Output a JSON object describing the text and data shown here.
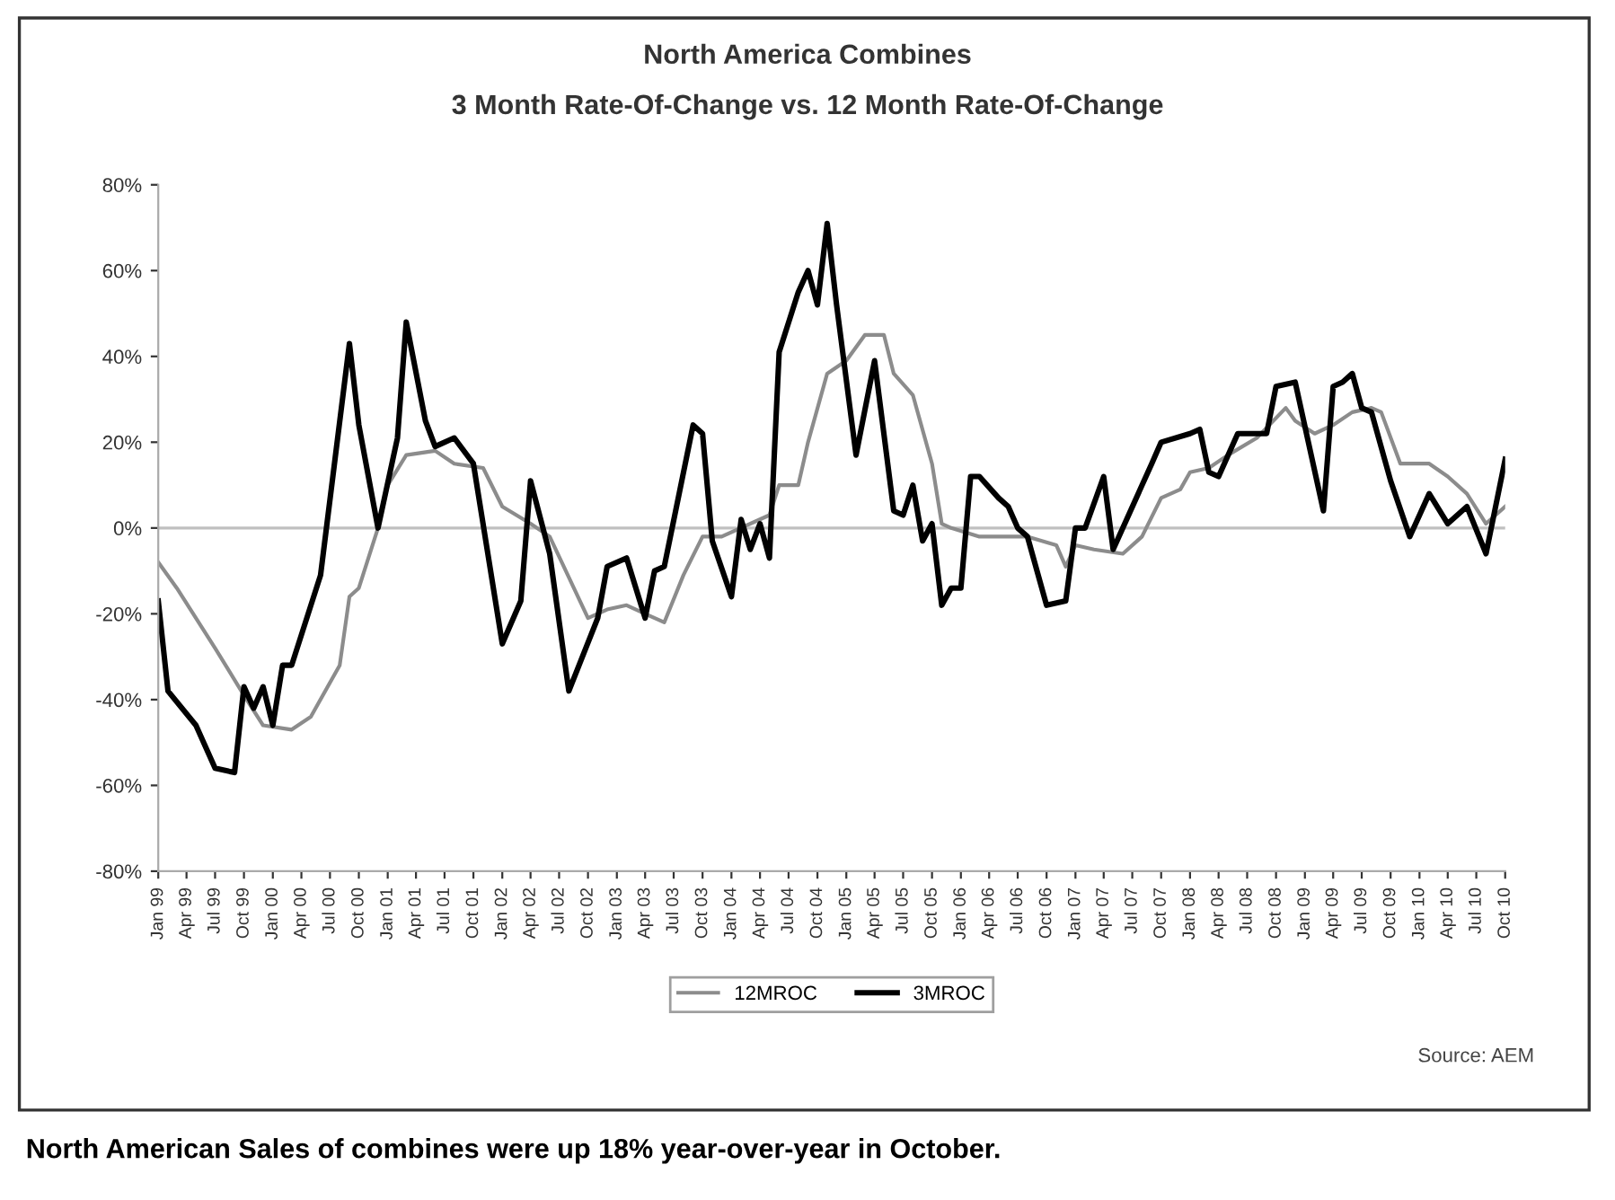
{
  "chart_data": {
    "type": "line",
    "title": "North America Combines",
    "subtitle": "3 Month Rate-Of-Change vs. 12 Month Rate-Of-Change",
    "annotations": [
      "Source: AEM",
      "North American Sales of combines were up 18% year-over-year in October."
    ],
    "xlim": [
      "1999-01",
      "2010-10"
    ],
    "xticks": [
      {
        "value": "1999-01",
        "label": "Jan 99"
      },
      {
        "value": "1999-04",
        "label": "Apr 99"
      },
      {
        "value": "1999-07",
        "label": "Jul 99"
      },
      {
        "value": "1999-10",
        "label": "Oct 99"
      },
      {
        "value": "2000-01",
        "label": "Jan 00"
      },
      {
        "value": "2000-04",
        "label": "Apr 00"
      },
      {
        "value": "2000-07",
        "label": "Jul 00"
      },
      {
        "value": "2000-10",
        "label": "Oct 00"
      },
      {
        "value": "2001-01",
        "label": "Jan 01"
      },
      {
        "value": "2001-04",
        "label": "Apr 01"
      },
      {
        "value": "2001-07",
        "label": "Jul 01"
      },
      {
        "value": "2001-10",
        "label": "Oct 01"
      },
      {
        "value": "2002-01",
        "label": "Jan 02"
      },
      {
        "value": "2002-04",
        "label": "Apr 02"
      },
      {
        "value": "2002-07",
        "label": "Jul 02"
      },
      {
        "value": "2002-10",
        "label": "Oct 02"
      },
      {
        "value": "2003-01",
        "label": "Jan 03"
      },
      {
        "value": "2003-04",
        "label": "Apr 03"
      },
      {
        "value": "2003-07",
        "label": "Jul 03"
      },
      {
        "value": "2003-10",
        "label": "Oct 03"
      },
      {
        "value": "2004-01",
        "label": "Jan 04"
      },
      {
        "value": "2004-04",
        "label": "Apr 04"
      },
      {
        "value": "2004-07",
        "label": "Jul 04"
      },
      {
        "value": "2004-10",
        "label": "Oct 04"
      },
      {
        "value": "2005-01",
        "label": "Jan 05"
      },
      {
        "value": "2005-04",
        "label": "Apr 05"
      },
      {
        "value": "2005-07",
        "label": "Jul 05"
      },
      {
        "value": "2005-10",
        "label": "Oct 05"
      },
      {
        "value": "2006-01",
        "label": "Jan 06"
      },
      {
        "value": "2006-04",
        "label": "Apr 06"
      },
      {
        "value": "2006-07",
        "label": "Jul 06"
      },
      {
        "value": "2006-10",
        "label": "Oct 06"
      },
      {
        "value": "2007-01",
        "label": "Jan 07"
      },
      {
        "value": "2007-04",
        "label": "Apr 07"
      },
      {
        "value": "2007-07",
        "label": "Jul 07"
      },
      {
        "value": "2007-10",
        "label": "Oct 07"
      },
      {
        "value": "2008-01",
        "label": "Jan 08"
      },
      {
        "value": "2008-04",
        "label": "Apr 08"
      },
      {
        "value": "2008-07",
        "label": "Jul 08"
      },
      {
        "value": "2008-10",
        "label": "Oct 08"
      },
      {
        "value": "2009-01",
        "label": "Jan 09"
      },
      {
        "value": "2009-04",
        "label": "Apr 09"
      },
      {
        "value": "2009-07",
        "label": "Jul 09"
      },
      {
        "value": "2009-10",
        "label": "Oct 09"
      },
      {
        "value": "2010-01",
        "label": "Jan 10"
      },
      {
        "value": "2010-04",
        "label": "Apr 10"
      },
      {
        "value": "2010-07",
        "label": "Jul 10"
      },
      {
        "value": "2010-10",
        "label": "Oct 10"
      }
    ],
    "ylim": [
      -80,
      80
    ],
    "yticks": [
      {
        "value": -80,
        "label": "-80%"
      },
      {
        "value": -60,
        "label": "-60%"
      },
      {
        "value": -40,
        "label": "-40%"
      },
      {
        "value": -20,
        "label": "-20%"
      },
      {
        "value": 0,
        "label": "0%"
      },
      {
        "value": 20,
        "label": "20%"
      },
      {
        "value": 40,
        "label": "40%"
      },
      {
        "value": 60,
        "label": "60%"
      },
      {
        "value": 80,
        "label": "80%"
      }
    ],
    "ref_lines": [
      {
        "axis": "y",
        "value": 0,
        "color": "#c0c0c0"
      }
    ],
    "grid": false,
    "legend": "bottom",
    "marker": "none",
    "line_style": "solid",
    "series": [
      {
        "name": "12MROC",
        "color": "#8c8c8c",
        "x": [
          "1999-01",
          "1999-03",
          "1999-07",
          "1999-10",
          "1999-12",
          "2000-03",
          "2000-05",
          "2000-08",
          "2000-09",
          "2000-10",
          "2000-12",
          "2001-01",
          "2001-03",
          "2001-06",
          "2001-08",
          "2001-11",
          "2002-01",
          "2002-04",
          "2002-06",
          "2002-10",
          "2002-12",
          "2003-02",
          "2003-04",
          "2003-06",
          "2003-08",
          "2003-10",
          "2003-12",
          "2004-05",
          "2004-06",
          "2004-08",
          "2004-09",
          "2004-11",
          "2005-01",
          "2005-03",
          "2005-05",
          "2005-06",
          "2005-08",
          "2005-10",
          "2005-11",
          "2005-12",
          "2006-03",
          "2006-08",
          "2006-11",
          "2006-12",
          "2007-01",
          "2007-03",
          "2007-06",
          "2007-08",
          "2007-10",
          "2007-12",
          "2008-01",
          "2008-03",
          "2008-05",
          "2008-08",
          "2008-11",
          "2008-12",
          "2009-02",
          "2009-04",
          "2009-06",
          "2009-08",
          "2009-09",
          "2009-11",
          "2010-02",
          "2010-04",
          "2010-06",
          "2010-08",
          "2010-10"
        ],
        "values": [
          -8,
          -14,
          -28,
          -39,
          -46,
          -47,
          -44,
          -32,
          -16,
          -14,
          0,
          10,
          17,
          18,
          15,
          14,
          5,
          1,
          -2,
          -21,
          -19,
          -18,
          -20,
          -22,
          -11,
          -2,
          -2,
          3,
          10,
          10,
          20,
          36,
          39,
          45,
          45,
          36,
          31,
          15,
          1,
          0,
          -2,
          -2,
          -4,
          -9,
          -4,
          -5,
          -6,
          -2,
          7,
          9,
          13,
          14,
          17,
          21,
          28,
          25,
          22,
          24,
          27,
          28,
          27,
          15,
          15,
          12,
          8,
          1,
          5
        ]
      },
      {
        "name": "3MROC",
        "color": "#000000",
        "x": [
          "1999-01",
          "1999-02",
          "1999-05",
          "1999-07",
          "1999-09",
          "1999-10",
          "1999-11",
          "1999-12",
          "2000-01",
          "2000-02",
          "2000-03",
          "2000-06",
          "2000-09",
          "2000-10",
          "2000-12",
          "2001-02",
          "2001-03",
          "2001-05",
          "2001-06",
          "2001-08",
          "2001-10",
          "2002-01",
          "2002-03",
          "2002-04",
          "2002-06",
          "2002-08",
          "2002-11",
          "2002-12",
          "2003-02",
          "2003-04",
          "2003-05",
          "2003-06",
          "2003-09",
          "2003-10",
          "2003-11",
          "2004-01",
          "2004-02",
          "2004-03",
          "2004-04",
          "2004-05",
          "2004-06",
          "2004-08",
          "2004-09",
          "2004-10",
          "2004-11",
          "2004-12",
          "2005-02",
          "2005-04",
          "2005-06",
          "2005-07",
          "2005-08",
          "2005-09",
          "2005-10",
          "2005-11",
          "2005-12",
          "2006-01",
          "2006-02",
          "2006-03",
          "2006-05",
          "2006-06",
          "2006-07",
          "2006-08",
          "2006-10",
          "2006-12",
          "2007-01",
          "2007-02",
          "2007-04",
          "2007-05",
          "2007-09",
          "2007-10",
          "2008-01",
          "2008-02",
          "2008-03",
          "2008-04",
          "2008-06",
          "2008-07",
          "2008-09",
          "2008-10",
          "2008-12",
          "2009-03",
          "2009-04",
          "2009-05",
          "2009-06",
          "2009-07",
          "2009-08",
          "2009-10",
          "2009-12",
          "2010-02",
          "2010-04",
          "2010-06",
          "2010-08",
          "2010-10"
        ],
        "values": [
          -17,
          -38,
          -46,
          -56,
          -57,
          -37,
          -42,
          -37,
          -46,
          -32,
          -32,
          -11,
          43,
          24,
          0,
          21,
          48,
          25,
          19,
          21,
          15,
          -27,
          -17,
          11,
          -6,
          -38,
          -21,
          -9,
          -7,
          -21,
          -10,
          -9,
          24,
          22,
          -3,
          -16,
          2,
          -5,
          1,
          -7,
          41,
          55,
          60,
          52,
          71,
          52,
          17,
          39,
          4,
          3,
          10,
          -3,
          1,
          -18,
          -14,
          -14,
          12,
          12,
          7,
          5,
          0,
          -2,
          -18,
          -17,
          0,
          0,
          12,
          -5,
          15,
          20,
          22,
          23,
          13,
          12,
          22,
          22,
          22,
          33,
          34,
          4,
          33,
          34,
          36,
          28,
          27,
          11,
          -2,
          8,
          1,
          5,
          -6,
          16
        ]
      }
    ]
  }
}
